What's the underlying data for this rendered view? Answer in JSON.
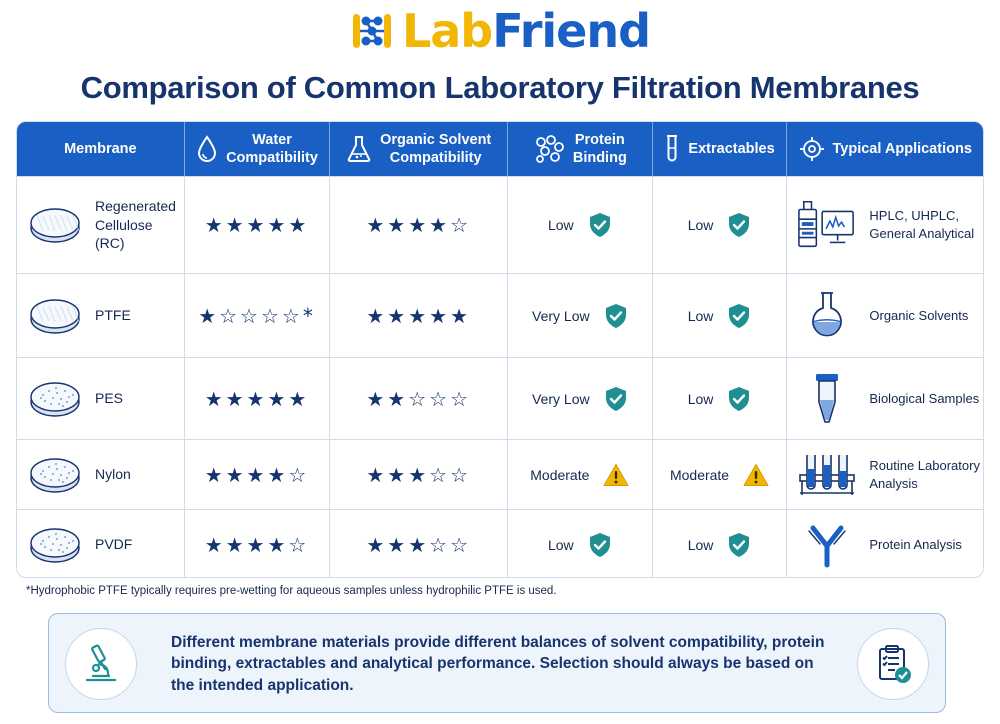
{
  "brand": {
    "lab": "Lab",
    "friend": "Friend"
  },
  "title": "Comparison of Common Laboratory Filtration Membranes",
  "columns": {
    "membrane": "Membrane",
    "water": [
      "Water",
      "Compatibility"
    ],
    "organic": [
      "Organic Solvent",
      "Compatibility"
    ],
    "protein": [
      "Protein",
      "Binding"
    ],
    "extractables": "Extractables",
    "applications": "Typical Applications"
  },
  "rows": [
    {
      "membrane": [
        "Regenerated",
        "Cellulose (RC)"
      ],
      "water_stars": "★★★★★",
      "organic_stars": "★★★★☆",
      "protein_binding": "Low",
      "protein_status": "ok",
      "extractables": "Low",
      "extractables_status": "ok",
      "application": [
        "HPLC, UHPLC,",
        "General Analytical"
      ],
      "application_icon": "hplc-system-icon",
      "disc_style": "fine"
    },
    {
      "membrane": [
        "PTFE"
      ],
      "water_stars": "★☆☆☆☆*",
      "organic_stars": "★★★★★",
      "protein_binding": "Very Low",
      "protein_status": "ok",
      "extractables": "Low",
      "extractables_status": "ok",
      "application": [
        "Organic Solvents"
      ],
      "application_icon": "flask-icon",
      "disc_style": "fine"
    },
    {
      "membrane": [
        "PES"
      ],
      "water_stars": "★★★★★",
      "organic_stars": "★★☆☆☆",
      "protein_binding": "Very Low",
      "protein_status": "ok",
      "extractables": "Low",
      "extractables_status": "ok",
      "application": [
        "Biological Samples"
      ],
      "application_icon": "centrifuge-tube-icon",
      "disc_style": "dotted"
    },
    {
      "membrane": [
        "Nylon"
      ],
      "water_stars": "★★★★☆",
      "organic_stars": "★★★☆☆",
      "protein_binding": "Moderate",
      "protein_status": "warn",
      "extractables": "Moderate",
      "extractables_status": "warn",
      "application": [
        "Routine Laboratory",
        "Analysis"
      ],
      "application_icon": "test-tube-rack-icon",
      "disc_style": "dotted"
    },
    {
      "membrane": [
        "PVDF"
      ],
      "water_stars": "★★★★☆",
      "organic_stars": "★★★☆☆",
      "protein_binding": "Low",
      "protein_status": "ok",
      "extractables": "Low",
      "extractables_status": "ok",
      "application": [
        "Protein Analysis"
      ],
      "application_icon": "antibody-icon",
      "disc_style": "dotted"
    }
  ],
  "footnote": "*Hydrophobic PTFE typically requires pre-wetting for aqueous samples unless hydrophilic PTFE is used.",
  "info": "Different membrane materials provide different balances of solvent compatibility, protein binding, extractables and analytical performance. Selection should always be based on the intended application.",
  "colors": {
    "header": "#1a5fc4",
    "navy": "#17346e",
    "ok": "#1f8f94",
    "warn": "#f2b705",
    "logo_yellow": "#f2b705"
  }
}
